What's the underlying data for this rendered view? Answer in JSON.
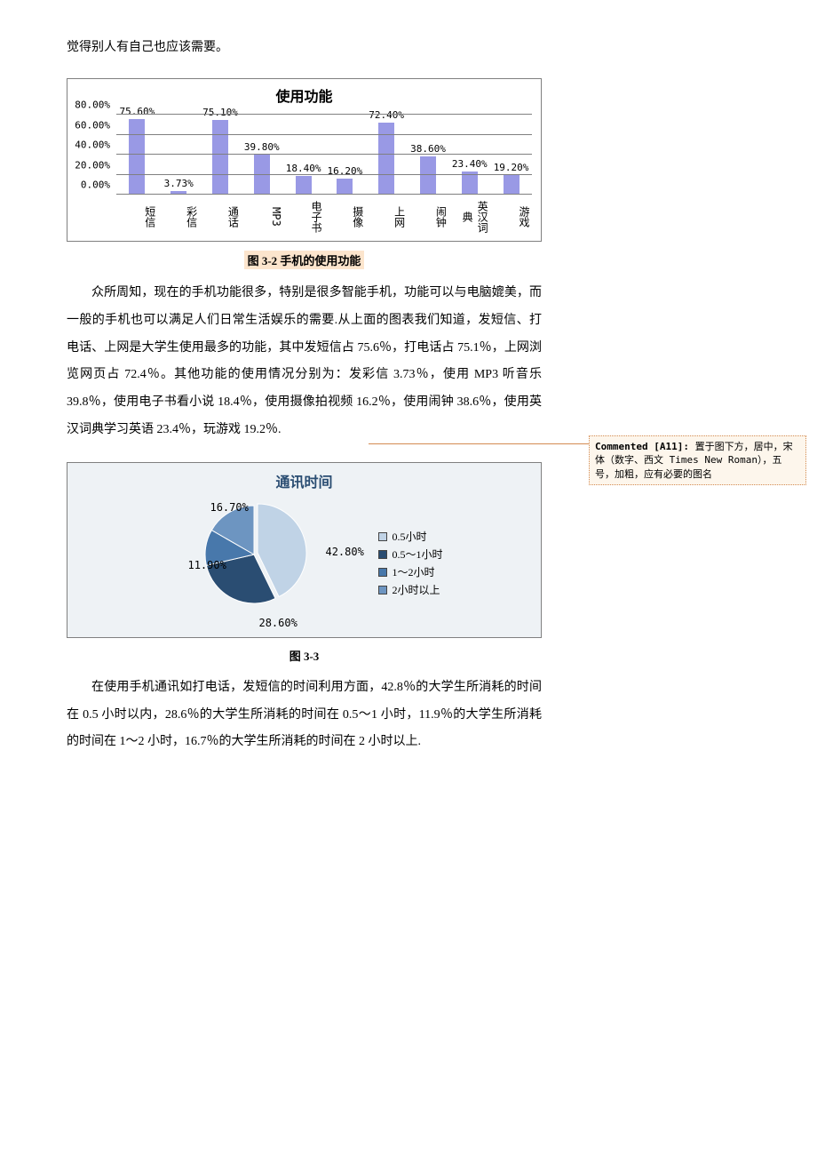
{
  "intro": "觉得别人有自己也应该需要。",
  "chart1": {
    "type": "bar",
    "title": "使用功能",
    "categories": [
      "短信",
      "彩信",
      "通话",
      "MP3",
      "电子书",
      "摄像",
      "上网",
      "闹钟",
      "英汉词典",
      "游戏"
    ],
    "values": [
      75.6,
      3.73,
      75.1,
      39.8,
      18.4,
      16.2,
      72.4,
      38.6,
      23.4,
      19.2
    ],
    "value_labels": [
      "75.60%",
      "3.73%",
      "75.10%",
      "39.80%",
      "18.40%",
      "16.20%",
      "72.40%",
      "38.60%",
      "23.40%",
      "19.20%"
    ],
    "bar_color": "#9999e5",
    "grid_color": "#808080",
    "background": "#ffffff",
    "ylim": [
      0,
      80
    ],
    "ytick_step": 20,
    "yticks": [
      "0.00%",
      "20.00%",
      "40.00%",
      "60.00%",
      "80.00%"
    ],
    "label_fontsize": 11
  },
  "caption1": "图 3-2  手机的使用功能",
  "para1": "众所周知，现在的手机功能很多，特别是很多智能手机，功能可以与电脑媲美，而一般的手机也可以满足人们日常生活娱乐的需要.从上面的图表我们知道，发短信、打电话、上网是大学生使用最多的功能，其中发短信占 75.6％，打电话占 75.1％，上网浏览网页占 72.4％。其他功能的使用情况分别为：发彩信 3.73％，使用 MP3 听音乐 39.8％，使用电子书看小说 18.4％，使用摄像拍视频 16.2％，使用闹钟 38.6％，使用英汉词典学习英语 23.4％，玩游戏 19.2％.",
  "chart2": {
    "type": "pie",
    "title": "通讯时间",
    "background": "#eef2f5",
    "title_color": "#2a4d72",
    "slices": [
      {
        "label": "0.5小时",
        "value": 42.8,
        "value_label": "42.80%",
        "color": "#c0d3e6"
      },
      {
        "label": "0.5～1小时",
        "value": 28.6,
        "value_label": "28.60%",
        "color": "#2a4d72"
      },
      {
        "label": "1～2小时",
        "value": 11.9,
        "value_label": "11.90%",
        "color": "#4878ab"
      },
      {
        "label": "2小时以上",
        "value": 16.7,
        "value_label": "16.70%",
        "color": "#6d95c1"
      }
    ],
    "legend_labels": [
      "0.5小时",
      "0.5～1小时",
      "1～2小时",
      "2小时以上"
    ]
  },
  "caption2": "图 3-3",
  "para2": "在使用手机通讯如打电话，发短信的时间利用方面，42.8％的大学生所消耗的时间在 0.5 小时以内，28.6％的大学生所消耗的时间在 0.5～1 小时，11.9％的大学生所消耗的时间在 1～2 小时，16.7％的大学生所消耗的时间在 2 小时以上.",
  "comment": {
    "author": "Commented [A11]: ",
    "text": "置于图下方，居中，宋体（数字、西文 Times New Roman），五号，加粗，应有必要的图名",
    "border_color": "#d48b52",
    "background": "#fdf6ec"
  }
}
